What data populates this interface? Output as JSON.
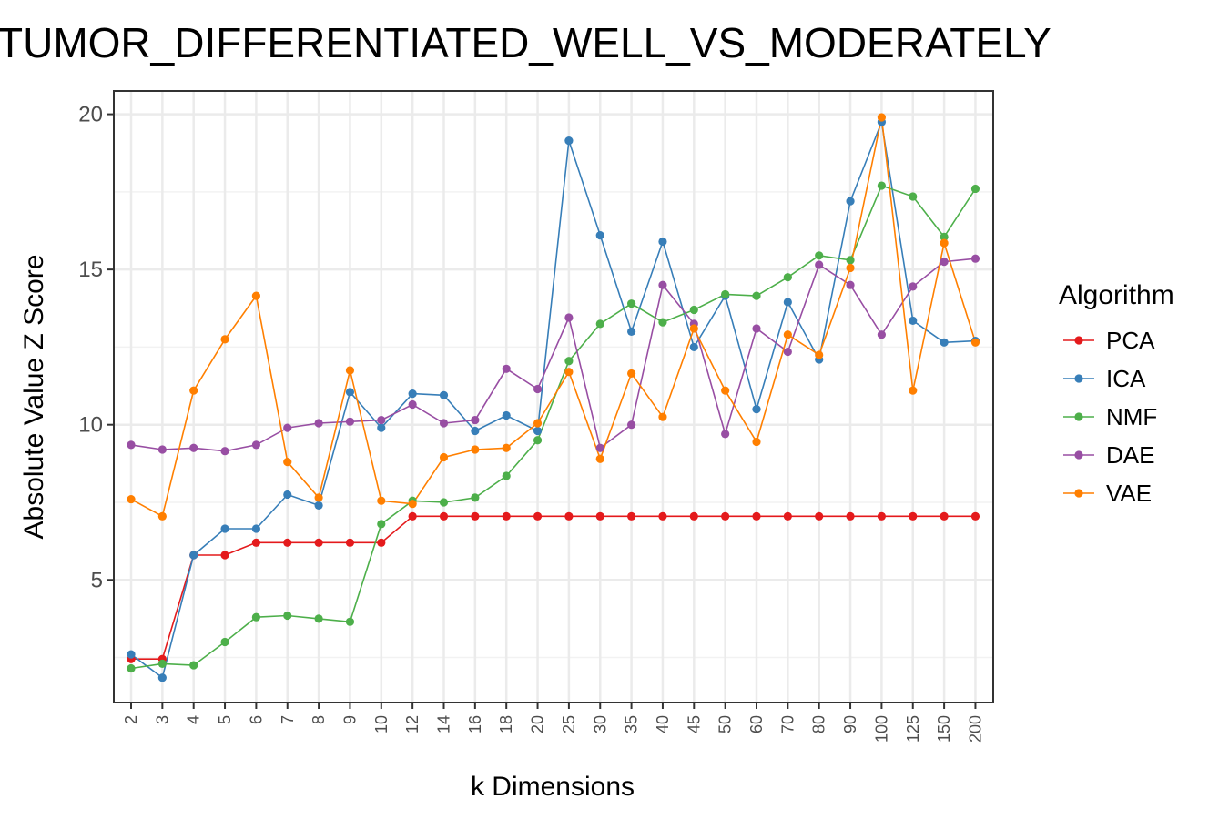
{
  "chart_data": {
    "type": "line",
    "title": "TUMOR_DIFFERENTIATED_WELL_VS_MODERATELY",
    "xlabel": "k Dimensions",
    "ylabel": "Absolute Value Z Score",
    "categories": [
      "2",
      "3",
      "4",
      "5",
      "6",
      "7",
      "8",
      "9",
      "10",
      "12",
      "14",
      "16",
      "18",
      "20",
      "25",
      "30",
      "35",
      "40",
      "45",
      "50",
      "60",
      "70",
      "80",
      "90",
      "100",
      "125",
      "150",
      "200"
    ],
    "ylim": [
      1.05,
      20.75
    ],
    "yticks": [
      5,
      10,
      15,
      20
    ],
    "grid": true,
    "legend": {
      "title": "Algorithm",
      "placement": "right"
    },
    "series": [
      {
        "name": "PCA",
        "color": "#e41a1c",
        "values": [
          2.45,
          2.45,
          5.8,
          5.8,
          6.2,
          6.2,
          6.2,
          6.2,
          6.2,
          7.05,
          7.05,
          7.05,
          7.05,
          7.05,
          7.05,
          7.05,
          7.05,
          7.05,
          7.05,
          7.05,
          7.05,
          7.05,
          7.05,
          7.05,
          7.05,
          7.05,
          7.05,
          7.05
        ]
      },
      {
        "name": "ICA",
        "color": "#377eb8",
        "values": [
          2.6,
          1.85,
          5.8,
          6.65,
          6.65,
          7.75,
          7.4,
          11.05,
          9.9,
          11.0,
          10.95,
          9.8,
          10.3,
          9.8,
          19.15,
          16.1,
          13.0,
          15.9,
          12.5,
          14.15,
          10.5,
          13.95,
          12.1,
          17.2,
          19.75,
          13.35,
          12.65,
          12.7
        ]
      },
      {
        "name": "NMF",
        "color": "#4daf4a",
        "values": [
          2.15,
          2.3,
          2.25,
          3.0,
          3.8,
          3.85,
          3.75,
          3.65,
          6.8,
          7.55,
          7.5,
          7.65,
          8.35,
          9.5,
          12.05,
          13.25,
          13.9,
          13.3,
          13.7,
          14.2,
          14.15,
          14.75,
          15.45,
          15.3,
          17.7,
          17.35,
          16.05,
          17.6
        ]
      },
      {
        "name": "DAE",
        "color": "#984ea3",
        "values": [
          9.35,
          9.2,
          9.25,
          9.15,
          9.35,
          9.9,
          10.05,
          10.1,
          10.15,
          10.65,
          10.05,
          10.15,
          11.8,
          11.15,
          13.45,
          9.25,
          10.0,
          14.5,
          13.25,
          9.7,
          13.1,
          12.35,
          15.15,
          14.5,
          12.9,
          14.45,
          15.25,
          15.35
        ]
      },
      {
        "name": "VAE",
        "color": "#ff7f00",
        "values": [
          7.6,
          7.05,
          11.1,
          12.75,
          14.15,
          8.8,
          7.65,
          11.75,
          7.55,
          7.45,
          8.95,
          9.2,
          9.25,
          10.05,
          11.7,
          8.9,
          11.65,
          10.25,
          13.1,
          11.1,
          9.45,
          12.9,
          12.25,
          15.05,
          19.9,
          11.1,
          15.85,
          12.65
        ]
      }
    ]
  }
}
